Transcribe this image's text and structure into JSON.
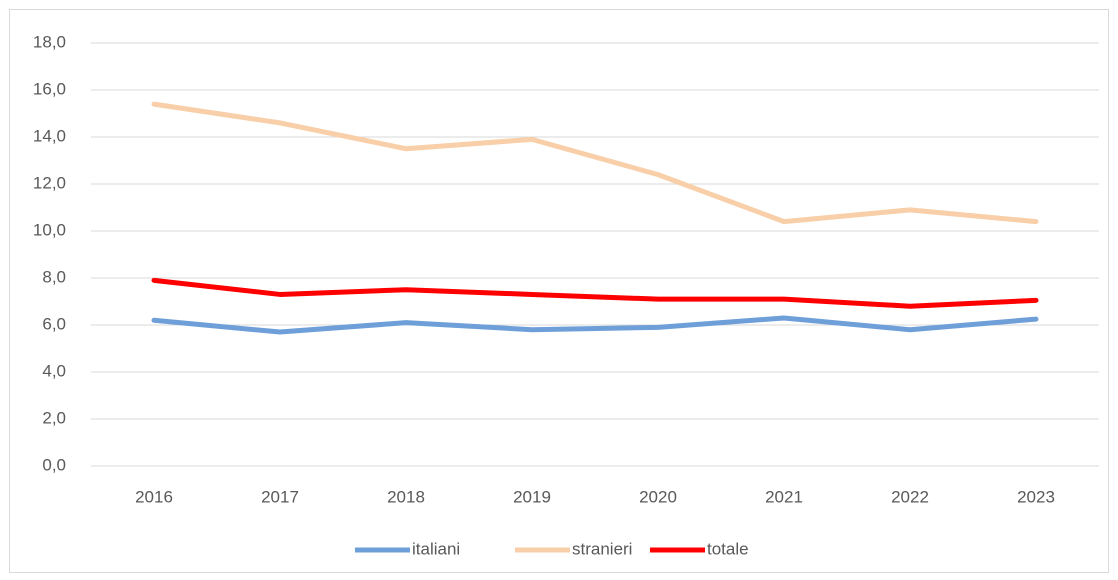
{
  "chart_data": {
    "type": "line",
    "categories": [
      "2016",
      "2017",
      "2018",
      "2019",
      "2020",
      "2021",
      "2022",
      "2023"
    ],
    "series": [
      {
        "name": "italiani",
        "color": "#6f9fd8",
        "values": [
          6.2,
          5.7,
          6.1,
          5.8,
          5.9,
          6.3,
          5.8,
          6.25
        ]
      },
      {
        "name": "stranieri",
        "color": "#f8cfa8",
        "values": [
          15.4,
          14.6,
          13.5,
          13.9,
          12.4,
          10.4,
          10.9,
          10.4
        ]
      },
      {
        "name": "totale",
        "color": "#ff0000",
        "values": [
          7.9,
          7.3,
          7.5,
          7.3,
          7.1,
          7.1,
          6.8,
          7.05
        ]
      }
    ],
    "ylim": [
      0,
      18
    ],
    "yticks": [
      {
        "value": 0,
        "label": "0,0"
      },
      {
        "value": 2,
        "label": "2,0"
      },
      {
        "value": 4,
        "label": "4,0"
      },
      {
        "value": 6,
        "label": "6,0"
      },
      {
        "value": 8,
        "label": "8,0"
      },
      {
        "value": 10,
        "label": "10,0"
      },
      {
        "value": 12,
        "label": "12,0"
      },
      {
        "value": 14,
        "label": "14,0"
      },
      {
        "value": 16,
        "label": "16,0"
      },
      {
        "value": 18,
        "label": "18,0"
      }
    ],
    "grid": true,
    "legend": "bottom"
  }
}
